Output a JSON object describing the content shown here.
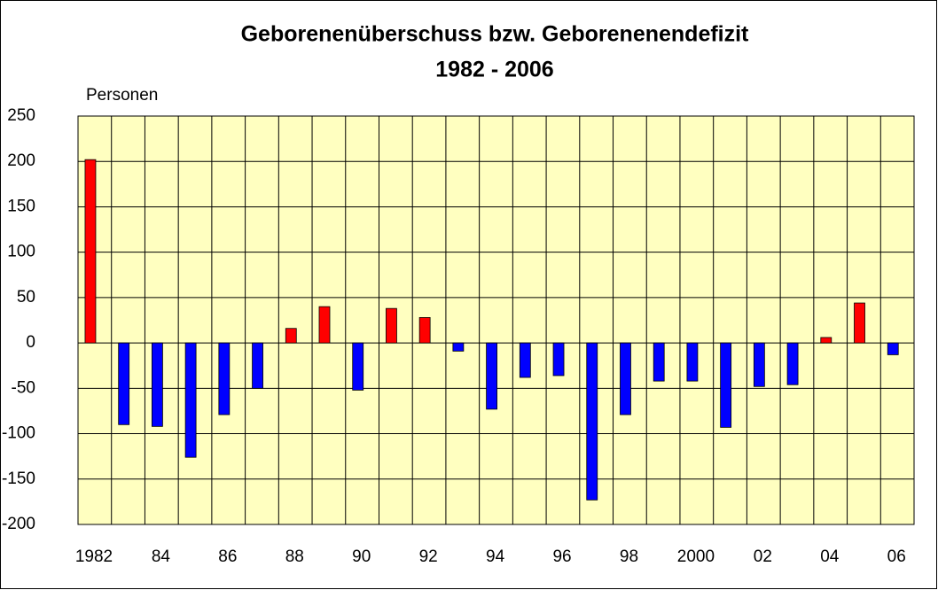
{
  "chart_data": {
    "type": "bar",
    "title": "Geborenenüberschuss bzw. Geborenenendefizit",
    "subtitle": "1982 - 2006",
    "y_label": "Personen",
    "categories": [
      "1982",
      null,
      "84",
      null,
      "86",
      null,
      "88",
      null,
      "90",
      null,
      "92",
      null,
      "94",
      null,
      "96",
      null,
      "98",
      null,
      "2000",
      null,
      "02",
      null,
      "04",
      null,
      "06"
    ],
    "values": [
      202,
      -90,
      -92,
      -126,
      -79,
      -50,
      16,
      40,
      -52,
      38,
      28,
      -9,
      -73,
      -38,
      -36,
      -173,
      -79,
      -42,
      -42,
      -93,
      -48,
      -46,
      6,
      44,
      -13
    ],
    "positive_color": "#ff0000",
    "negative_color": "#0000ff",
    "ylim": [
      -200,
      250
    ],
    "yticks": [
      -200,
      -150,
      -100,
      -50,
      0,
      50,
      100,
      150,
      200,
      250
    ],
    "grid": true
  }
}
